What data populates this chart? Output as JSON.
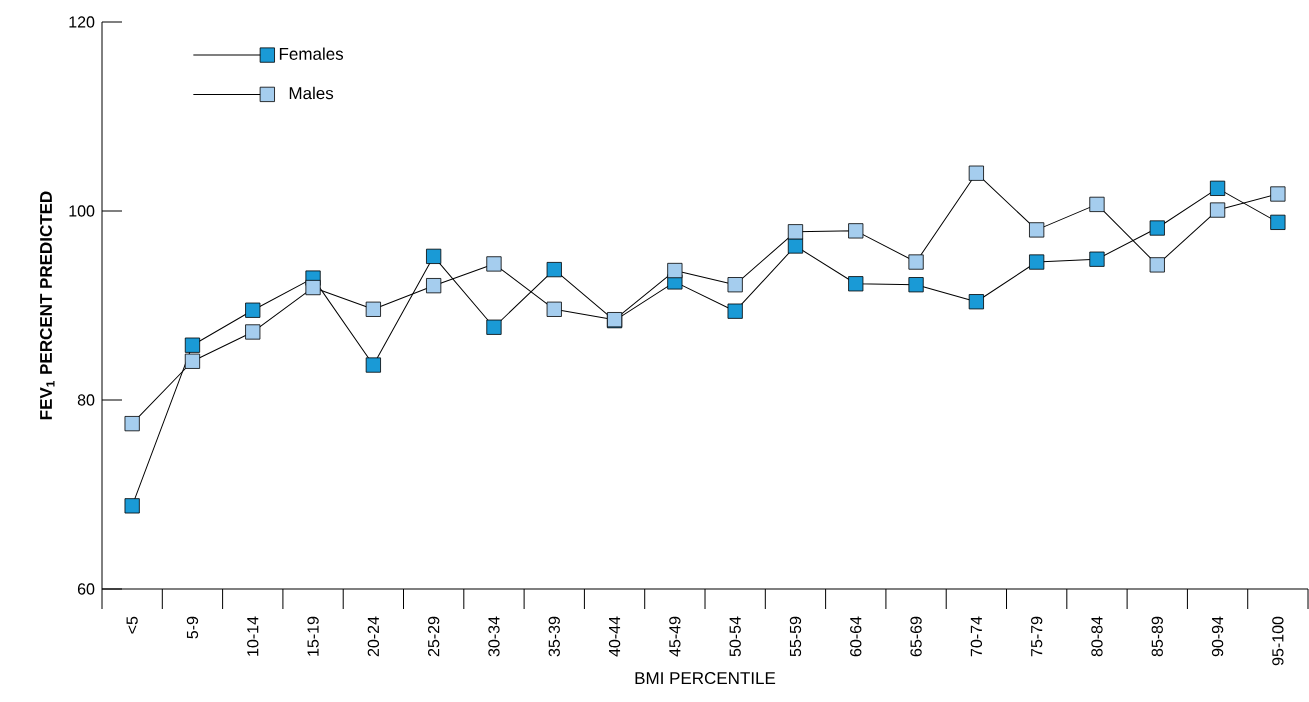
{
  "chart_data": {
    "type": "line",
    "xlabel": "BMI PERCENTILE",
    "ylabel": "FEV$_{1}$ PERCENT PREDICTED",
    "categories": [
      "<5",
      "5-9",
      "10-14",
      "15-19",
      "20-24",
      "25-29",
      "30-34",
      "35-39",
      "40-44",
      "45-49",
      "50-54",
      "55-59",
      "60-64",
      "65-69",
      "70-74",
      "75-79",
      "80-84",
      "85-89",
      "90-94",
      "95-100"
    ],
    "series": [
      {
        "name": "Females",
        "color": "#1a9ad6",
        "values": [
          68.8,
          85.8,
          89.5,
          92.9,
          83.7,
          95.2,
          87.7,
          93.8,
          88.4,
          92.5,
          89.4,
          96.3,
          92.3,
          92.2,
          90.4,
          94.6,
          94.9,
          98.2,
          102.4,
          98.8
        ]
      },
      {
        "name": "Males",
        "color": "#a5cdee",
        "values": [
          77.5,
          84.1,
          87.2,
          91.9,
          89.6,
          92.1,
          94.4,
          89.6,
          88.5,
          93.7,
          92.2,
          97.8,
          97.9,
          94.6,
          104.0,
          98.0,
          100.7,
          94.3,
          100.1,
          101.8
        ]
      }
    ],
    "ylim": [
      60,
      120
    ],
    "yticks": [
      60,
      80,
      100,
      120
    ],
    "legend": "top left",
    "marker": "square",
    "line_style": "solid"
  }
}
